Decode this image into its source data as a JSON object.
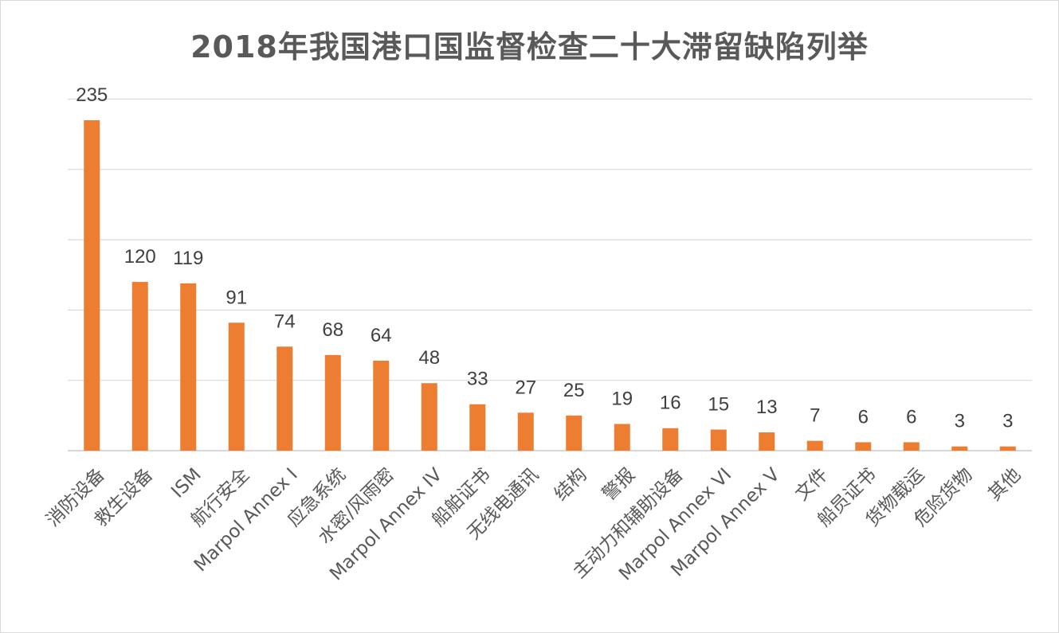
{
  "chart_data": {
    "type": "bar",
    "title": "2018年我国港口国监督检查二十大滞留缺陷列举",
    "categories": [
      "消防设备",
      "救生设备",
      "ISM",
      "航行安全",
      "Marpol Annex I",
      "应急系统",
      "水密/风雨密",
      "Marpol Annex IV",
      "船舶证书",
      "无线电通讯",
      "结构",
      "警报",
      "主动力和辅助设备",
      "Marpol Annex VI",
      "Marpol Annex V",
      "文件",
      "船员证书",
      "货物载运",
      "危险货物",
      "其他"
    ],
    "values": [
      235,
      120,
      119,
      91,
      74,
      68,
      64,
      48,
      33,
      27,
      25,
      19,
      16,
      15,
      13,
      7,
      6,
      6,
      3,
      3
    ],
    "ylim": [
      0,
      250
    ],
    "grid": true,
    "legend": "none",
    "bar_color": "#ED7D31",
    "grid_color": "#d9d9d9"
  }
}
